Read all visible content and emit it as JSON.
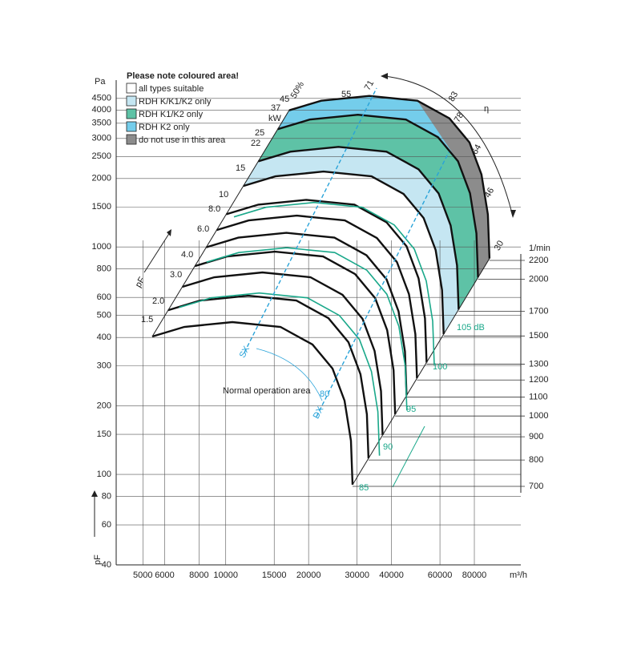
{
  "chart_data": {
    "type": "fan-performance",
    "legend": {
      "title": "Please note coloured area!",
      "items": [
        {
          "name": "all types suitable",
          "color": "#ffffff"
        },
        {
          "name": "RDH K/K1/K2 only",
          "color": "#c5e6f2"
        },
        {
          "name": "RDH K1/K2 only",
          "color": "#5ec2a6"
        },
        {
          "name": "RDH K2 only",
          "color": "#74cdeb"
        },
        {
          "name": "do not use in this area",
          "color": "#8c8c8c"
        }
      ]
    },
    "x_unit": "m³/h",
    "y_unit": "Pa",
    "y_axis_label": "pF",
    "y2_unit": "1/min",
    "xscale": "log",
    "yscale": "log",
    "y2scale": "log",
    "grid": true,
    "xlim": [
      4000,
      118000
    ],
    "xticks": [
      5000,
      6000,
      8000,
      10000,
      15000,
      20000,
      30000,
      40000,
      60000,
      80000
    ],
    "ylim": [
      40,
      5200
    ],
    "yticks": [
      40,
      60,
      80,
      100,
      150,
      200,
      300,
      400,
      500,
      600,
      800,
      1000,
      1500,
      2000,
      2500,
      3000,
      3500,
      4000,
      4500
    ],
    "y2lim": [
      700,
      2200
    ],
    "y2ticks": [
      700,
      800,
      900,
      1000,
      1100,
      1200,
      1300,
      1500,
      1700,
      2000,
      2200
    ],
    "power_unit": "kW",
    "power_labels": [
      "1.5",
      "2.0",
      "3.0",
      "4.0",
      "6.0",
      "8.0",
      "10",
      "15",
      "22",
      "25",
      "37",
      "45",
      "55"
    ],
    "efficiency_symbol": "η",
    "efficiency_labels": [
      "50%",
      "71",
      "83",
      "78",
      "64",
      "46",
      "30"
    ],
    "noise_labels": [
      "105 dB",
      "100",
      "95",
      "90",
      "85",
      "80"
    ],
    "line_labels": [
      "SX",
      "DX"
    ],
    "pressure_arrow_label": "pF",
    "area_label": "Normal operation area"
  }
}
